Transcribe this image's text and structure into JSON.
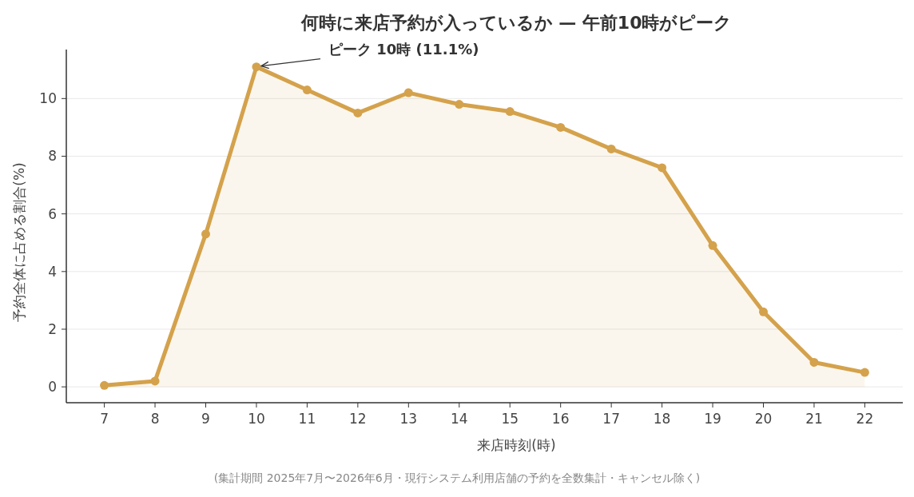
{
  "chart_data": {
    "type": "area",
    "title": "何時に来店予約が入っているか — 午前10時がピーク",
    "xlabel": "来店時刻(時)",
    "ylabel": "予約全体に占める割合(%)",
    "x": [
      7,
      8,
      9,
      10,
      11,
      12,
      13,
      14,
      15,
      16,
      17,
      18,
      19,
      20,
      21,
      22
    ],
    "series": [
      {
        "color": "#d4a24c",
        "values": [
          0.05,
          0.2,
          5.3,
          11.1,
          10.3,
          9.5,
          10.2,
          9.8,
          9.55,
          9.0,
          8.25,
          7.6,
          4.9,
          2.6,
          0.85,
          0.5
        ]
      }
    ],
    "xlim": [
      6.25,
      22.75
    ],
    "xticks": [
      7,
      8,
      9,
      10,
      11,
      12,
      13,
      14,
      15,
      16,
      17,
      18,
      19,
      20,
      21,
      22
    ],
    "ylim": [
      -0.55,
      11.7
    ],
    "yticks": [
      0,
      2,
      4,
      6,
      8,
      10
    ],
    "grid": "y",
    "marker": "circle",
    "line_style": "solid",
    "annotations": [
      {
        "text": "ピーク 10時 (11.1%)",
        "x": 10,
        "y": 11.1
      },
      "(集計期間 2025年7月〜2026年6月・現行システム利用店舗の予約を全数集計・キャンセル除く)"
    ]
  }
}
